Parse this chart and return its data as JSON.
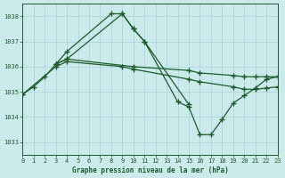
{
  "background_color": "#cce9ec",
  "grid_color": "#a8d4d8",
  "line_color": "#1a5c2a",
  "title": "Graphe pression niveau de la mer (hPa)",
  "xlim": [
    0,
    23
  ],
  "ylim": [
    1032.5,
    1038.5
  ],
  "yticks": [
    1033,
    1034,
    1035,
    1036,
    1037,
    1038
  ],
  "xticks": [
    0,
    1,
    2,
    3,
    4,
    5,
    6,
    7,
    8,
    9,
    10,
    11,
    12,
    13,
    14,
    15,
    16,
    17,
    18,
    19,
    20,
    21,
    22,
    23
  ],
  "series": [
    {
      "x": [
        0,
        1,
        2,
        3,
        4,
        8,
        9,
        10,
        11,
        15
      ],
      "y": [
        1034.9,
        1035.2,
        1035.6,
        1036.1,
        1036.6,
        1038.1,
        1038.1,
        1037.5,
        1037.0,
        1034.5
      ]
    },
    {
      "x": [
        3,
        4,
        10,
        15,
        16,
        19,
        20,
        21,
        22,
        23
      ],
      "y": [
        1036.1,
        1036.3,
        1036.0,
        1035.85,
        1035.75,
        1035.65,
        1035.6,
        1035.6,
        1035.6,
        1035.6
      ]
    },
    {
      "x": [
        0,
        3,
        4,
        9,
        10,
        15,
        16,
        19,
        20,
        21,
        22,
        23
      ],
      "y": [
        1034.9,
        1036.0,
        1036.2,
        1036.0,
        1035.9,
        1035.5,
        1035.4,
        1035.2,
        1035.1,
        1035.1,
        1035.15,
        1035.2
      ]
    },
    {
      "x": [
        3,
        4,
        9,
        10,
        11,
        14,
        15,
        16,
        17,
        18,
        19,
        20,
        21,
        22,
        23
      ],
      "y": [
        1036.1,
        1036.3,
        1038.1,
        1037.5,
        1037.0,
        1034.6,
        1034.4,
        1033.3,
        1033.3,
        1033.9,
        1034.55,
        1034.85,
        1035.15,
        1035.5,
        1035.6
      ]
    }
  ]
}
